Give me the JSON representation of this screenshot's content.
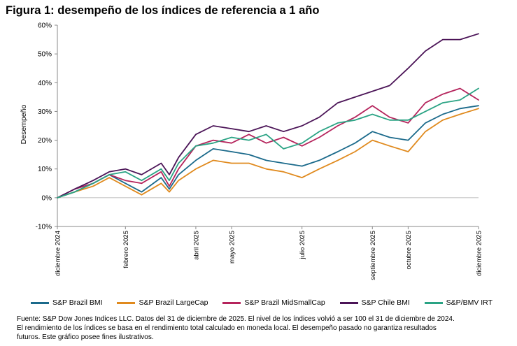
{
  "figure": {
    "title": "Figura 1: desempeño de los índices de referencia a 1 año",
    "footnote_lines": [
      "Fuente: S&P Dow Jones Indices LLC. Datos del 31 de diciembre de 2025. El nivel de los índices volvió a ser 100 el 31 de diciembre de 2024.",
      "El rendimiento de los índices se basa en el rendimiento total calculado en moneda local. El desempeño pasado no garantiza resultados",
      "futuros. Este gráfico posee fines ilustrativos."
    ]
  },
  "chart_data": {
    "type": "line",
    "title": "",
    "xlabel": "",
    "ylabel": "Desempeño",
    "ylim": [
      -10,
      60
    ],
    "yticks": [
      -10,
      0,
      10,
      20,
      30,
      40,
      50,
      60
    ],
    "ytick_labels": [
      "-10%",
      "0%",
      "10%",
      "20%",
      "30%",
      "40%",
      "50%",
      "60%"
    ],
    "x_start": "2024-12-31",
    "x_end": "2025-12-31",
    "xticks": [
      {
        "date": "2024-12-31",
        "label": "diciembre 2024"
      },
      {
        "date": "2025-02-28",
        "label": "febrero 2025"
      },
      {
        "date": "2025-04-30",
        "label": "abril 2025"
      },
      {
        "date": "2025-05-31",
        "label": "mayo 2025"
      },
      {
        "date": "2025-07-31",
        "label": "julio 2025"
      },
      {
        "date": "2025-09-30",
        "label": "septiembre 2025"
      },
      {
        "date": "2025-10-31",
        "label": "octubre 2025"
      },
      {
        "date": "2025-12-31",
        "label": "diciembre 2025"
      }
    ],
    "grid": false,
    "legend_position": "bottom",
    "x": [
      "2024-12-31",
      "2025-01-15",
      "2025-01-31",
      "2025-02-14",
      "2025-02-28",
      "2025-03-14",
      "2025-03-31",
      "2025-04-07",
      "2025-04-15",
      "2025-04-30",
      "2025-05-15",
      "2025-05-31",
      "2025-06-15",
      "2025-06-30",
      "2025-07-15",
      "2025-07-31",
      "2025-08-15",
      "2025-08-31",
      "2025-09-15",
      "2025-09-30",
      "2025-10-15",
      "2025-10-31",
      "2025-11-15",
      "2025-11-30",
      "2025-12-15",
      "2025-12-31"
    ],
    "series": [
      {
        "name": "S&P Brazil BMI",
        "color": "#1b6a8b",
        "values": [
          0,
          2,
          5,
          8,
          5,
          2,
          7,
          3,
          8,
          13,
          17,
          16,
          15,
          13,
          12,
          11,
          13,
          16,
          19,
          23,
          21,
          20,
          26,
          29,
          31,
          32
        ]
      },
      {
        "name": "S&P Brazil LargeCap",
        "color": "#e08a1e",
        "values": [
          0,
          2,
          4,
          7,
          4,
          1,
          5,
          2,
          6,
          10,
          13,
          12,
          12,
          10,
          9,
          7,
          10,
          13,
          16,
          20,
          18,
          16,
          23,
          27,
          29,
          31
        ]
      },
      {
        "name": "S&P Brazil MidSmallCap",
        "color": "#b5245c",
        "values": [
          0,
          3,
          5,
          8,
          6,
          5,
          9,
          4,
          10,
          18,
          20,
          19,
          22,
          19,
          21,
          18,
          21,
          25,
          28,
          32,
          28,
          26,
          33,
          36,
          38,
          34
        ]
      },
      {
        "name": "S&P Chile BMI",
        "color": "#4b1457",
        "values": [
          0,
          3,
          6,
          9,
          10,
          8,
          12,
          8,
          14,
          22,
          25,
          24,
          23,
          25,
          23,
          25,
          28,
          33,
          35,
          37,
          39,
          45,
          51,
          55,
          55,
          57
        ]
      },
      {
        "name": "S&P/BMV IRT",
        "color": "#2aa384",
        "values": [
          0,
          2,
          5,
          8,
          9,
          6,
          10,
          6,
          12,
          18,
          19,
          21,
          20,
          22,
          17,
          19,
          23,
          26,
          27,
          29,
          27,
          27,
          30,
          33,
          34,
          38
        ]
      }
    ]
  }
}
